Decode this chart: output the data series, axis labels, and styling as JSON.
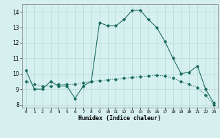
{
  "xlabel": "Humidex (Indice chaleur)",
  "line1_x": [
    0,
    1,
    2,
    3,
    4,
    5,
    6,
    7,
    8,
    9,
    10,
    11,
    12,
    13,
    14,
    15,
    16,
    17,
    18,
    19,
    20,
    21,
    22,
    23
  ],
  "line1_y": [
    10.2,
    9.0,
    9.0,
    9.5,
    9.2,
    9.2,
    8.4,
    9.2,
    9.5,
    13.3,
    13.1,
    13.1,
    13.5,
    14.1,
    14.1,
    13.5,
    13.0,
    12.1,
    11.0,
    10.0,
    10.1,
    10.5,
    9.0,
    8.1
  ],
  "line2_x": [
    0,
    1,
    2,
    3,
    4,
    5,
    6,
    7,
    8,
    9,
    10,
    11,
    12,
    13,
    14,
    15,
    16,
    17,
    18,
    19,
    20,
    21,
    22,
    23
  ],
  "line2_y": [
    9.5,
    9.3,
    9.2,
    9.2,
    9.3,
    9.3,
    9.3,
    9.4,
    9.5,
    9.55,
    9.6,
    9.65,
    9.7,
    9.75,
    9.8,
    9.85,
    9.9,
    9.85,
    9.7,
    9.5,
    9.3,
    9.1,
    8.6,
    8.0
  ],
  "line_color": "#1a6b60",
  "bg_color": "#d6f0ef",
  "grid_color": "#b8dbd9",
  "ylim": [
    7.8,
    14.5
  ],
  "xlim": [
    -0.5,
    23.5
  ],
  "yticks": [
    8,
    9,
    10,
    11,
    12,
    13,
    14
  ],
  "xticks": [
    0,
    1,
    2,
    3,
    4,
    5,
    6,
    7,
    8,
    9,
    10,
    11,
    12,
    13,
    14,
    15,
    16,
    17,
    18,
    19,
    20,
    21,
    22,
    23
  ]
}
